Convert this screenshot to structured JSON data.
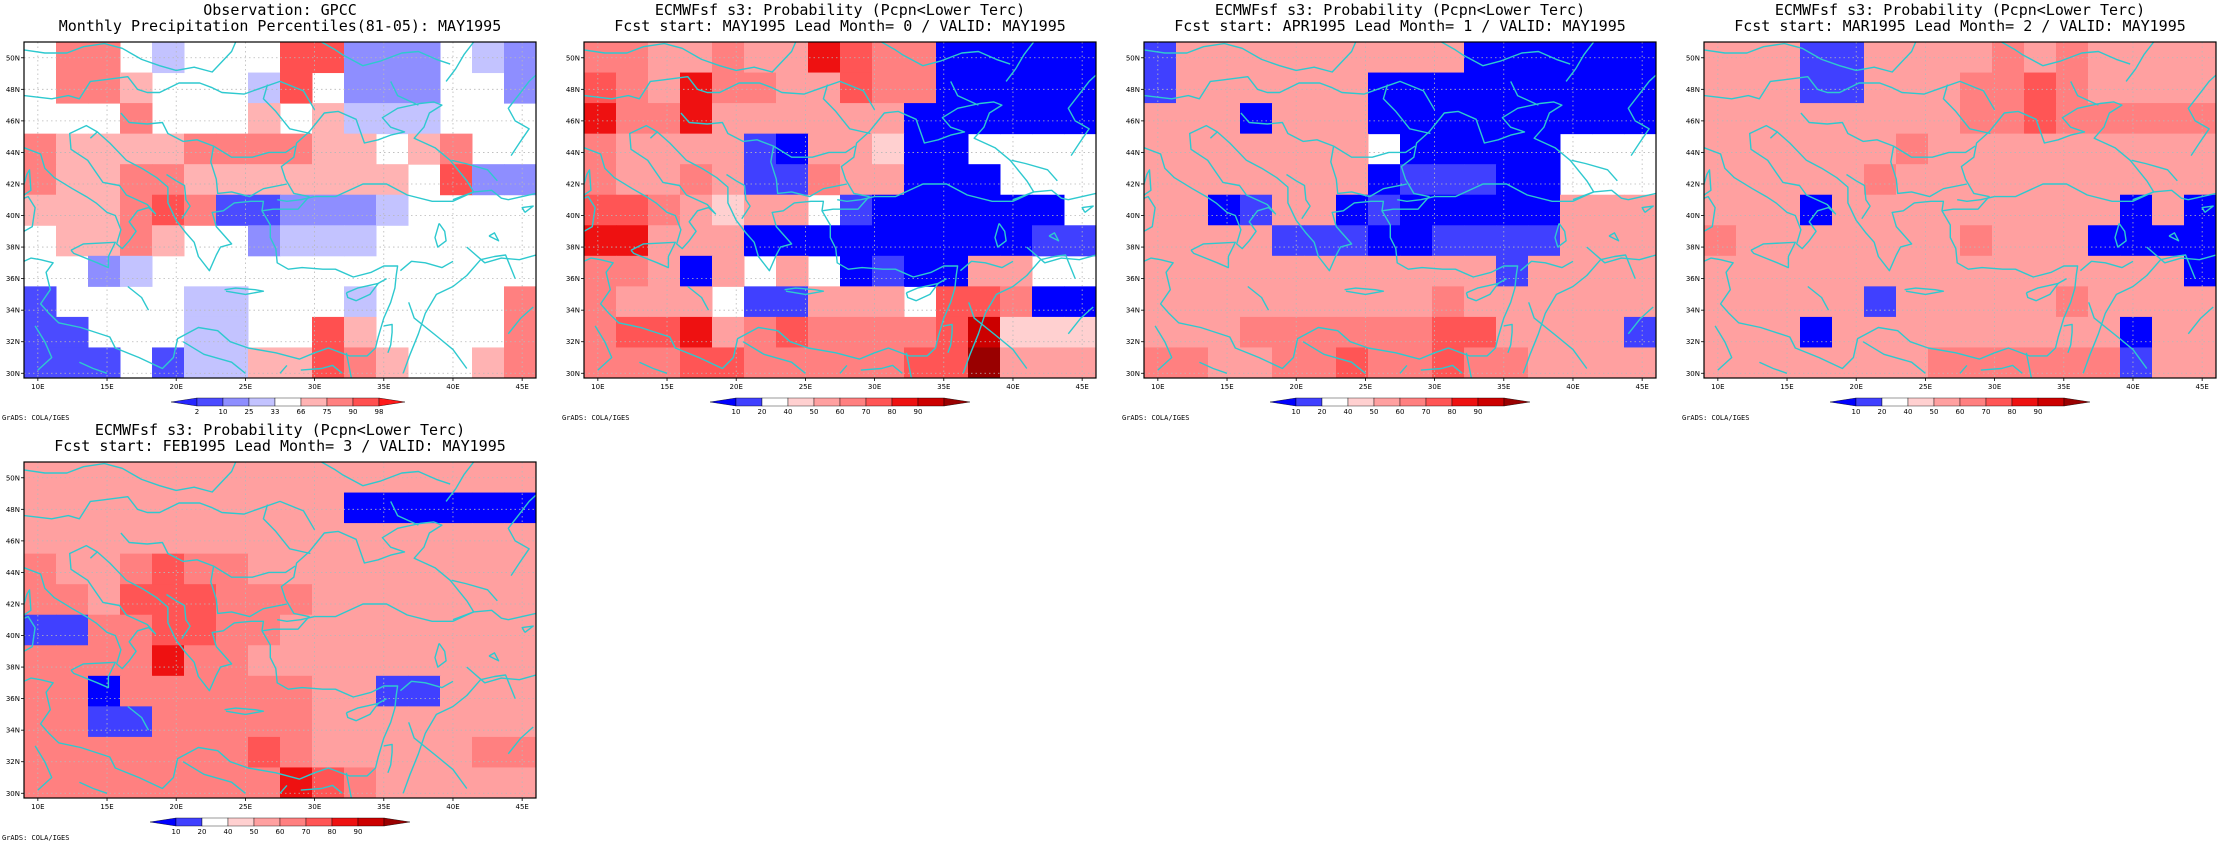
{
  "grads_label": "GrADS: COLA/IGES",
  "lat_labels": [
    "50N",
    "48N",
    "46N",
    "44N",
    "42N",
    "40N",
    "38N",
    "36N",
    "34N",
    "32N",
    "30N"
  ],
  "lon_labels": [
    "10E",
    "15E",
    "20E",
    "25E",
    "30E",
    "35E",
    "40E",
    "45E"
  ],
  "palettes": {
    "obs": {
      "colors": [
        "#2626ff",
        "#4b4bff",
        "#8e8eff",
        "#c3c3ff",
        "#ffffff",
        "#ffb3b3",
        "#ff8080",
        "#ff5050",
        "#ff1a1a"
      ],
      "labels": [
        "2",
        "10",
        "25",
        "33",
        "66",
        "75",
        "90",
        "98"
      ]
    },
    "prob": {
      "colors": [
        "#0000ff",
        "#4040ff",
        "#ffffff",
        "#ffd0d0",
        "#ffa0a0",
        "#ff8080",
        "#ff5555",
        "#ee1111",
        "#cc0000",
        "#990000"
      ],
      "labels": [
        "10",
        "20",
        "40",
        "50",
        "60",
        "70",
        "80",
        "90"
      ]
    }
  },
  "colors": {
    "coast": "#2ec9cf",
    "grid": "#b8b8b8"
  },
  "panels": [
    {
      "id": "obs",
      "title1": "Observation: GPCC",
      "title2": "Monthly Precipitation Percentiles(81-05): MAY1995",
      "palette": "obs",
      "grid": [
        [
          4,
          6,
          6,
          4,
          3,
          4,
          4,
          4,
          7,
          7,
          2,
          2,
          2,
          4,
          3,
          2
        ],
        [
          4,
          6,
          6,
          5,
          4,
          4,
          4,
          3,
          7,
          4,
          2,
          2,
          2,
          4,
          4,
          2
        ],
        [
          4,
          4,
          4,
          6,
          4,
          4,
          4,
          5,
          4,
          5,
          3,
          3,
          3,
          4,
          4,
          4
        ],
        [
          6,
          5,
          5,
          5,
          5,
          6,
          6,
          6,
          6,
          5,
          5,
          4,
          5,
          6,
          4,
          4
        ],
        [
          6,
          5,
          5,
          6,
          6,
          5,
          5,
          5,
          5,
          5,
          5,
          5,
          4,
          7,
          2,
          2
        ],
        [
          5,
          5,
          5,
          6,
          7,
          6,
          1,
          1,
          2,
          2,
          2,
          3,
          4,
          4,
          4,
          4
        ],
        [
          4,
          5,
          5,
          6,
          5,
          4,
          4,
          2,
          3,
          3,
          3,
          4,
          4,
          4,
          4,
          4
        ],
        [
          4,
          4,
          2,
          3,
          4,
          4,
          4,
          4,
          4,
          4,
          4,
          4,
          4,
          4,
          4,
          4
        ],
        [
          1,
          4,
          4,
          4,
          4,
          3,
          3,
          4,
          4,
          4,
          3,
          4,
          4,
          4,
          4,
          6
        ],
        [
          1,
          1,
          4,
          4,
          4,
          3,
          3,
          4,
          4,
          7,
          5,
          4,
          4,
          4,
          4,
          6
        ],
        [
          1,
          1,
          1,
          4,
          1,
          3,
          3,
          5,
          5,
          7,
          6,
          5,
          4,
          4,
          5,
          6
        ]
      ]
    },
    {
      "id": "lead0",
      "title1": "ECMWFsf s3: Probability (Pcpn<Lower Terc)",
      "title2": "Fcst start: MAY1995   Lead Month= 0 / VALID: MAY1995",
      "palette": "prob",
      "grid": [
        [
          5,
          5,
          4,
          4,
          5,
          4,
          4,
          7,
          6,
          5,
          5,
          0,
          0,
          0,
          0,
          0
        ],
        [
          6,
          5,
          4,
          7,
          5,
          5,
          4,
          4,
          6,
          5,
          5,
          0,
          0,
          0,
          0,
          0
        ],
        [
          7,
          5,
          5,
          7,
          4,
          4,
          4,
          4,
          4,
          4,
          0,
          0,
          0,
          0,
          0,
          0
        ],
        [
          5,
          4,
          4,
          4,
          4,
          1,
          0,
          4,
          4,
          3,
          0,
          0,
          2,
          2,
          2,
          2
        ],
        [
          5,
          4,
          4,
          5,
          4,
          1,
          1,
          5,
          4,
          4,
          0,
          0,
          0,
          2,
          2,
          2
        ],
        [
          6,
          6,
          5,
          4,
          3,
          4,
          4,
          2,
          1,
          0,
          0,
          0,
          0,
          0,
          0,
          2
        ],
        [
          7,
          7,
          4,
          4,
          4,
          0,
          0,
          0,
          0,
          0,
          0,
          0,
          0,
          0,
          1,
          1
        ],
        [
          5,
          5,
          4,
          0,
          4,
          2,
          4,
          2,
          0,
          1,
          0,
          0,
          4,
          4,
          2,
          2
        ],
        [
          5,
          4,
          4,
          4,
          2,
          1,
          1,
          4,
          4,
          4,
          2,
          6,
          6,
          5,
          0,
          0
        ],
        [
          5,
          6,
          6,
          7,
          4,
          5,
          6,
          5,
          5,
          5,
          5,
          6,
          8,
          3,
          3,
          3
        ],
        [
          5,
          5,
          5,
          6,
          6,
          5,
          5,
          5,
          5,
          5,
          6,
          6,
          9,
          4,
          4,
          4
        ]
      ]
    },
    {
      "id": "lead1",
      "title1": "ECMWFsf s3: Probability (Pcpn<Lower Terc)",
      "title2": "Fcst start: APR1995   Lead Month= 1 / VALID: MAY1995",
      "palette": "prob",
      "grid": [
        [
          1,
          4,
          4,
          4,
          4,
          4,
          4,
          4,
          4,
          4,
          0,
          0,
          0,
          0,
          0,
          0
        ],
        [
          1,
          4,
          4,
          4,
          4,
          4,
          4,
          0,
          0,
          0,
          0,
          0,
          0,
          0,
          0,
          0
        ],
        [
          4,
          4,
          4,
          0,
          4,
          4,
          4,
          0,
          0,
          0,
          0,
          0,
          0,
          0,
          0,
          0
        ],
        [
          4,
          4,
          4,
          4,
          4,
          4,
          4,
          2,
          0,
          0,
          0,
          0,
          0,
          2,
          2,
          2
        ],
        [
          4,
          4,
          4,
          4,
          4,
          4,
          4,
          0,
          1,
          1,
          1,
          0,
          0,
          2,
          2,
          2
        ],
        [
          4,
          4,
          0,
          1,
          4,
          4,
          0,
          1,
          0,
          0,
          0,
          0,
          0,
          4,
          4,
          4
        ],
        [
          4,
          4,
          4,
          4,
          1,
          1,
          1,
          0,
          0,
          1,
          1,
          1,
          1,
          4,
          4,
          4
        ],
        [
          4,
          4,
          4,
          4,
          4,
          4,
          4,
          4,
          4,
          4,
          4,
          1,
          4,
          4,
          4,
          4
        ],
        [
          4,
          4,
          4,
          4,
          4,
          4,
          4,
          4,
          4,
          5,
          4,
          4,
          4,
          4,
          4,
          4
        ],
        [
          4,
          4,
          4,
          5,
          5,
          5,
          5,
          5,
          5,
          6,
          6,
          4,
          4,
          4,
          4,
          1
        ],
        [
          5,
          5,
          4,
          4,
          5,
          5,
          6,
          5,
          5,
          6,
          5,
          5,
          4,
          4,
          4,
          4
        ]
      ]
    },
    {
      "id": "lead2",
      "title1": "ECMWFsf s3: Probability (Pcpn<Lower Terc)",
      "title2": "Fcst start: MAR1995   Lead Month= 2 / VALID: MAY1995",
      "palette": "prob",
      "grid": [
        [
          4,
          4,
          4,
          1,
          1,
          4,
          4,
          4,
          4,
          5,
          4,
          5,
          4,
          4,
          4,
          4
        ],
        [
          4,
          4,
          4,
          1,
          1,
          4,
          4,
          4,
          5,
          5,
          6,
          5,
          4,
          4,
          4,
          4
        ],
        [
          4,
          4,
          4,
          4,
          4,
          4,
          4,
          4,
          5,
          5,
          6,
          5,
          5,
          5,
          5,
          5
        ],
        [
          4,
          4,
          4,
          4,
          4,
          4,
          5,
          4,
          4,
          4,
          4,
          4,
          4,
          4,
          4,
          4
        ],
        [
          4,
          4,
          4,
          4,
          4,
          5,
          4,
          4,
          4,
          4,
          4,
          4,
          4,
          4,
          4,
          4
        ],
        [
          4,
          4,
          4,
          0,
          4,
          4,
          4,
          4,
          4,
          4,
          4,
          4,
          4,
          0,
          4,
          0
        ],
        [
          5,
          4,
          4,
          4,
          4,
          4,
          4,
          4,
          5,
          4,
          4,
          4,
          0,
          0,
          0,
          0
        ],
        [
          4,
          4,
          4,
          4,
          4,
          4,
          4,
          4,
          4,
          4,
          4,
          4,
          4,
          4,
          4,
          0
        ],
        [
          4,
          4,
          4,
          4,
          4,
          1,
          4,
          4,
          4,
          4,
          4,
          5,
          4,
          4,
          4,
          4
        ],
        [
          4,
          4,
          4,
          0,
          4,
          4,
          4,
          4,
          4,
          4,
          4,
          4,
          4,
          0,
          4,
          4
        ],
        [
          4,
          4,
          4,
          4,
          4,
          4,
          4,
          5,
          5,
          5,
          5,
          5,
          5,
          1,
          4,
          4
        ]
      ]
    },
    {
      "id": "lead3",
      "title1": "ECMWFsf s3: Probability (Pcpn<Lower Terc)",
      "title2": "Fcst start: FEB1995   Lead Month= 3 / VALID: MAY1995",
      "palette": "prob",
      "grid": [
        [
          4,
          4,
          4,
          4,
          4,
          4,
          4,
          4,
          4,
          4,
          4,
          4,
          4,
          4,
          4,
          4
        ],
        [
          4,
          4,
          4,
          4,
          4,
          4,
          4,
          4,
          4,
          4,
          0,
          0,
          0,
          0,
          0,
          0
        ],
        [
          4,
          4,
          4,
          4,
          4,
          4,
          4,
          4,
          4,
          4,
          4,
          4,
          4,
          4,
          4,
          4
        ],
        [
          5,
          4,
          4,
          5,
          6,
          5,
          5,
          4,
          4,
          4,
          4,
          4,
          4,
          4,
          4,
          4
        ],
        [
          5,
          5,
          4,
          6,
          6,
          6,
          5,
          5,
          5,
          4,
          4,
          4,
          4,
          4,
          4,
          4
        ],
        [
          1,
          1,
          5,
          5,
          6,
          6,
          5,
          5,
          4,
          4,
          4,
          4,
          4,
          4,
          4,
          4
        ],
        [
          5,
          5,
          5,
          5,
          7,
          5,
          5,
          4,
          4,
          4,
          4,
          4,
          4,
          4,
          4,
          4
        ],
        [
          5,
          5,
          0,
          5,
          5,
          5,
          5,
          5,
          5,
          4,
          4,
          1,
          1,
          4,
          4,
          4
        ],
        [
          5,
          5,
          1,
          1,
          5,
          5,
          5,
          5,
          5,
          4,
          4,
          4,
          4,
          4,
          4,
          4
        ],
        [
          5,
          5,
          5,
          5,
          5,
          5,
          5,
          6,
          5,
          4,
          4,
          4,
          4,
          4,
          5,
          5
        ],
        [
          5,
          5,
          5,
          5,
          5,
          5,
          5,
          5,
          7,
          6,
          5,
          4,
          4,
          4,
          4,
          4
        ]
      ]
    }
  ]
}
